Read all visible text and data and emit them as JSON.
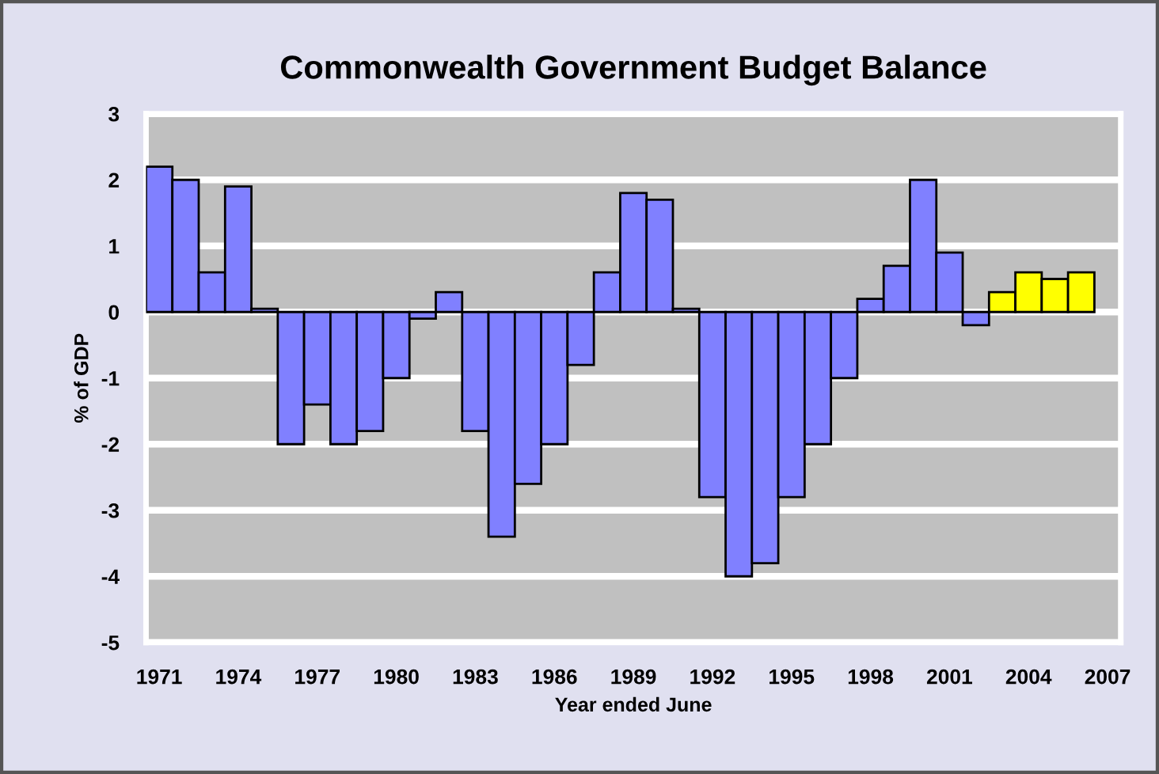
{
  "chart_data": {
    "type": "bar",
    "title": "Commonwealth Government Budget Balance",
    "xlabel": "Year ended June",
    "ylabel": "% of GDP",
    "categories": [
      "1971",
      null,
      null,
      "1974",
      null,
      null,
      "1977",
      null,
      null,
      "1980",
      null,
      null,
      "1983",
      null,
      null,
      "1986",
      null,
      null,
      "1989",
      null,
      null,
      "1992",
      null,
      null,
      "1995",
      null,
      null,
      "1998",
      null,
      null,
      "2001",
      null,
      null,
      "2004",
      null,
      null,
      "2007"
    ],
    "values": [
      2.2,
      2.0,
      0.6,
      1.9,
      0.05,
      -2.0,
      -1.4,
      -2.0,
      -1.8,
      -1.0,
      -0.1,
      0.3,
      -1.8,
      -3.4,
      -2.6,
      -2.0,
      -0.8,
      0.6,
      1.8,
      1.7,
      0.05,
      -2.8,
      -4.0,
      -3.8,
      -2.8,
      -2.0,
      -1.0,
      0.2,
      0.7,
      2.0,
      0.9,
      -0.2,
      0.3,
      0.6,
      0.5,
      0.6,
      null
    ],
    "colors": [
      "#8080ff",
      "#8080ff",
      "#8080ff",
      "#8080ff",
      "#8080ff",
      "#8080ff",
      "#8080ff",
      "#8080ff",
      "#8080ff",
      "#8080ff",
      "#8080ff",
      "#8080ff",
      "#8080ff",
      "#8080ff",
      "#8080ff",
      "#8080ff",
      "#8080ff",
      "#8080ff",
      "#8080ff",
      "#8080ff",
      "#8080ff",
      "#8080ff",
      "#8080ff",
      "#8080ff",
      "#8080ff",
      "#8080ff",
      "#8080ff",
      "#8080ff",
      "#8080ff",
      "#8080ff",
      "#8080ff",
      "#8080ff",
      "#ffff00",
      "#ffff00",
      "#ffff00",
      "#ffff00",
      "#ffff00"
    ],
    "ylim": [
      -5,
      3
    ],
    "yticks": [
      -5,
      -4,
      -3,
      -2,
      -1,
      0,
      1,
      2,
      3
    ],
    "grid": "y"
  }
}
